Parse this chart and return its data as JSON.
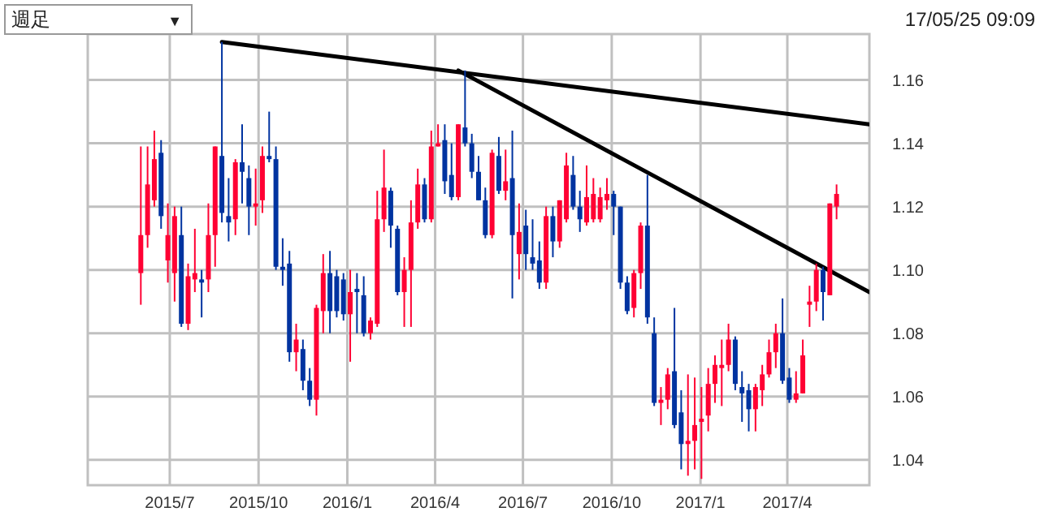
{
  "chart_data": {
    "type": "candlestick",
    "annotations": [
      "週足",
      "17/05/25 09:09",
      "▼"
    ],
    "x": [
      "2015-06-01",
      "2015-06-08",
      "2015-06-15",
      "2015-06-22",
      "2015-06-29",
      "2015-07-06",
      "2015-07-13",
      "2015-07-20",
      "2015-07-27",
      "2015-08-03",
      "2015-08-10",
      "2015-08-17",
      "2015-08-24",
      "2015-08-31",
      "2015-09-07",
      "2015-09-14",
      "2015-09-21",
      "2015-09-28",
      "2015-10-05",
      "2015-10-12",
      "2015-10-19",
      "2015-10-26",
      "2015-11-02",
      "2015-11-09",
      "2015-11-16",
      "2015-11-23",
      "2015-11-30",
      "2015-12-07",
      "2015-12-14",
      "2015-12-21",
      "2015-12-28",
      "2016-01-04",
      "2016-01-11",
      "2016-01-18",
      "2016-01-25",
      "2016-02-01",
      "2016-02-08",
      "2016-02-15",
      "2016-02-22",
      "2016-02-29",
      "2016-03-07",
      "2016-03-14",
      "2016-03-21",
      "2016-03-28",
      "2016-04-04",
      "2016-04-11",
      "2016-04-18",
      "2016-04-25",
      "2016-05-02",
      "2016-05-09",
      "2016-05-16",
      "2016-05-23",
      "2016-05-30",
      "2016-06-06",
      "2016-06-13",
      "2016-06-20",
      "2016-06-27",
      "2016-07-04",
      "2016-07-11",
      "2016-07-18",
      "2016-07-25",
      "2016-08-01",
      "2016-08-08",
      "2016-08-15",
      "2016-08-22",
      "2016-08-29",
      "2016-09-05",
      "2016-09-12",
      "2016-09-19",
      "2016-09-26",
      "2016-10-03",
      "2016-10-10",
      "2016-10-17",
      "2016-10-24",
      "2016-10-31",
      "2016-11-07",
      "2016-11-14",
      "2016-11-21",
      "2016-11-28",
      "2016-12-05",
      "2016-12-12",
      "2016-12-19",
      "2016-12-26",
      "2017-01-02",
      "2017-01-09",
      "2017-01-16",
      "2017-01-23",
      "2017-01-30",
      "2017-02-06",
      "2017-02-13",
      "2017-02-20",
      "2017-02-27",
      "2017-03-06",
      "2017-03-13",
      "2017-03-20",
      "2017-03-27",
      "2017-04-03",
      "2017-04-10",
      "2017-04-17",
      "2017-04-24",
      "2017-05-01",
      "2017-05-08",
      "2017-05-15",
      "2017-05-22"
    ],
    "ohlc": [
      [
        1.099,
        1.139,
        1.089,
        1.111
      ],
      [
        1.111,
        1.139,
        1.107,
        1.127
      ],
      [
        1.122,
        1.144,
        1.12,
        1.135
      ],
      [
        1.137,
        1.141,
        1.113,
        1.117
      ],
      [
        1.103,
        1.121,
        1.096,
        1.111
      ],
      [
        1.099,
        1.12,
        1.09,
        1.117
      ],
      [
        1.111,
        1.12,
        1.082,
        1.083
      ],
      [
        1.083,
        1.102,
        1.081,
        1.098
      ],
      [
        1.097,
        1.113,
        1.093,
        1.099
      ],
      [
        1.097,
        1.1,
        1.085,
        1.096
      ],
      [
        1.097,
        1.121,
        1.093,
        1.111
      ],
      [
        1.111,
        1.139,
        1.101,
        1.139
      ],
      [
        1.136,
        1.172,
        1.115,
        1.118
      ],
      [
        1.117,
        1.129,
        1.109,
        1.115
      ],
      [
        1.116,
        1.135,
        1.111,
        1.134
      ],
      [
        1.134,
        1.146,
        1.121,
        1.131
      ],
      [
        1.129,
        1.133,
        1.111,
        1.12
      ],
      [
        1.12,
        1.132,
        1.114,
        1.121
      ],
      [
        1.122,
        1.139,
        1.118,
        1.136
      ],
      [
        1.136,
        1.15,
        1.134,
        1.135
      ],
      [
        1.135,
        1.139,
        1.1,
        1.101
      ],
      [
        1.101,
        1.11,
        1.095,
        1.1
      ],
      [
        1.102,
        1.106,
        1.071,
        1.074
      ],
      [
        1.074,
        1.083,
        1.068,
        1.078
      ],
      [
        1.075,
        1.078,
        1.062,
        1.065
      ],
      [
        1.065,
        1.069,
        1.057,
        1.059
      ],
      [
        1.059,
        1.089,
        1.054,
        1.088
      ],
      [
        1.087,
        1.105,
        1.08,
        1.099
      ],
      [
        1.099,
        1.106,
        1.08,
        1.087
      ],
      [
        1.098,
        1.1,
        1.085,
        1.087
      ],
      [
        1.097,
        1.099,
        1.084,
        1.086
      ],
      [
        1.086,
        1.1,
        1.071,
        1.093
      ],
      [
        1.094,
        1.099,
        1.08,
        1.093
      ],
      [
        1.092,
        1.098,
        1.079,
        1.08
      ],
      [
        1.08,
        1.085,
        1.078,
        1.084
      ],
      [
        1.083,
        1.125,
        1.082,
        1.116
      ],
      [
        1.116,
        1.138,
        1.112,
        1.126
      ],
      [
        1.125,
        1.126,
        1.107,
        1.114
      ],
      [
        1.113,
        1.114,
        1.092,
        1.093
      ],
      [
        1.093,
        1.104,
        1.082,
        1.1
      ],
      [
        1.1,
        1.122,
        1.082,
        1.115
      ],
      [
        1.115,
        1.132,
        1.113,
        1.127
      ],
      [
        1.127,
        1.129,
        1.115,
        1.116
      ],
      [
        1.116,
        1.144,
        1.115,
        1.139
      ],
      [
        1.139,
        1.146,
        1.139,
        1.14
      ],
      [
        1.141,
        1.146,
        1.124,
        1.128
      ],
      [
        1.13,
        1.14,
        1.122,
        1.123
      ],
      [
        1.123,
        1.146,
        1.122,
        1.146
      ],
      [
        1.145,
        1.163,
        1.139,
        1.14
      ],
      [
        1.14,
        1.143,
        1.129,
        1.131
      ],
      [
        1.131,
        1.136,
        1.122,
        1.122
      ],
      [
        1.122,
        1.126,
        1.11,
        1.111
      ],
      [
        1.111,
        1.138,
        1.11,
        1.137
      ],
      [
        1.136,
        1.142,
        1.124,
        1.125
      ],
      [
        1.125,
        1.138,
        1.122,
        1.128
      ],
      [
        1.129,
        1.144,
        1.091,
        1.111
      ],
      [
        1.105,
        1.121,
        1.097,
        1.112
      ],
      [
        1.114,
        1.119,
        1.1,
        1.105
      ],
      [
        1.104,
        1.116,
        1.1,
        1.102
      ],
      [
        1.103,
        1.109,
        1.094,
        1.096
      ],
      [
        1.096,
        1.12,
        1.094,
        1.117
      ],
      [
        1.117,
        1.12,
        1.104,
        1.109
      ],
      [
        1.109,
        1.122,
        1.107,
        1.122
      ],
      [
        1.116,
        1.137,
        1.115,
        1.133
      ],
      [
        1.13,
        1.136,
        1.119,
        1.12
      ],
      [
        1.12,
        1.125,
        1.112,
        1.116
      ],
      [
        1.115,
        1.133,
        1.114,
        1.123
      ],
      [
        1.116,
        1.129,
        1.115,
        1.124
      ],
      [
        1.116,
        1.126,
        1.115,
        1.123
      ],
      [
        1.122,
        1.129,
        1.119,
        1.124
      ],
      [
        1.124,
        1.125,
        1.111,
        1.12
      ],
      [
        1.12,
        1.12,
        1.094,
        1.096
      ],
      [
        1.096,
        1.098,
        1.086,
        1.087
      ],
      [
        1.088,
        1.1,
        1.085,
        1.099
      ],
      [
        1.099,
        1.115,
        1.094,
        1.114
      ],
      [
        1.114,
        1.13,
        1.083,
        1.085
      ],
      [
        1.08,
        1.085,
        1.057,
        1.058
      ],
      [
        1.058,
        1.063,
        1.051,
        1.059
      ],
      [
        1.059,
        1.069,
        1.056,
        1.067
      ],
      [
        1.068,
        1.088,
        1.05,
        1.051
      ],
      [
        1.055,
        1.062,
        1.037,
        1.045
      ],
      [
        1.045,
        1.067,
        1.035,
        1.046
      ],
      [
        1.046,
        1.066,
        1.037,
        1.051
      ],
      [
        1.052,
        1.063,
        1.034,
        1.053
      ],
      [
        1.054,
        1.069,
        1.049,
        1.064
      ],
      [
        1.064,
        1.073,
        1.058,
        1.07
      ],
      [
        1.069,
        1.078,
        1.057,
        1.07
      ],
      [
        1.07,
        1.083,
        1.068,
        1.078
      ],
      [
        1.078,
        1.079,
        1.062,
        1.064
      ],
      [
        1.063,
        1.068,
        1.052,
        1.061
      ],
      [
        1.062,
        1.064,
        1.049,
        1.056
      ],
      [
        1.056,
        1.064,
        1.049,
        1.063
      ],
      [
        1.062,
        1.07,
        1.057,
        1.067
      ],
      [
        1.067,
        1.078,
        1.066,
        1.074
      ],
      [
        1.074,
        1.083,
        1.069,
        1.08
      ],
      [
        1.08,
        1.091,
        1.064,
        1.065
      ],
      [
        1.066,
        1.069,
        1.058,
        1.059
      ],
      [
        1.059,
        1.068,
        1.058,
        1.061
      ],
      [
        1.061,
        1.078,
        1.061,
        1.073
      ],
      [
        1.089,
        1.095,
        1.082,
        1.09
      ],
      [
        1.09,
        1.102,
        1.087,
        1.1
      ],
      [
        1.1,
        1.101,
        1.084,
        1.093
      ],
      [
        1.092,
        1.121,
        1.092,
        1.121
      ],
      [
        1.12,
        1.127,
        1.116,
        1.124
      ]
    ],
    "colors": [
      "#ff0033",
      "#ff0033",
      "#ff0033",
      "#0033a0",
      "#ff0033",
      "#ff0033",
      "#0033a0",
      "#ff0033",
      "#ff0033",
      "#0033a0",
      "#ff0033",
      "#ff0033",
      "#0033a0",
      "#0033a0",
      "#ff0033",
      "#0033a0",
      "#0033a0",
      "#ff0033",
      "#ff0033",
      "#0033a0",
      "#0033a0",
      "#0033a0",
      "#0033a0",
      "#ff0033",
      "#0033a0",
      "#0033a0",
      "#ff0033",
      "#ff0033",
      "#0033a0",
      "#0033a0",
      "#0033a0",
      "#ff0033",
      "#0033a0",
      "#0033a0",
      "#ff0033",
      "#ff0033",
      "#ff0033",
      "#0033a0",
      "#0033a0",
      "#ff0033",
      "#ff0033",
      "#ff0033",
      "#0033a0",
      "#ff0033",
      "#ff0033",
      "#0033a0",
      "#0033a0",
      "#ff0033",
      "#0033a0",
      "#0033a0",
      "#0033a0",
      "#0033a0",
      "#ff0033",
      "#0033a0",
      "#ff0033",
      "#0033a0",
      "#ff0033",
      "#0033a0",
      "#0033a0",
      "#0033a0",
      "#ff0033",
      "#0033a0",
      "#ff0033",
      "#ff0033",
      "#0033a0",
      "#0033a0",
      "#ff0033",
      "#ff0033",
      "#ff0033",
      "#ff0033",
      "#0033a0",
      "#0033a0",
      "#0033a0",
      "#ff0033",
      "#ff0033",
      "#0033a0",
      "#0033a0",
      "#ff0033",
      "#ff0033",
      "#0033a0",
      "#0033a0",
      "#ff0033",
      "#ff0033",
      "#ff0033",
      "#ff0033",
      "#ff0033",
      "#ff0033",
      "#ff0033",
      "#0033a0",
      "#0033a0",
      "#0033a0",
      "#ff0033",
      "#ff0033",
      "#ff0033",
      "#ff0033",
      "#0033a0",
      "#0033a0",
      "#ff0033",
      "#ff0033",
      "#ff0033",
      "#ff0033",
      "#0033a0",
      "#ff0033",
      "#ff0033"
    ],
    "series": [
      {
        "type": "line",
        "color": "#000000",
        "x": [
          "2015-08-24",
          "2017-06-25"
        ],
        "values": [
          1.172,
          1.146
        ]
      },
      {
        "type": "line",
        "color": "#000000",
        "x": [
          "2016-04-25",
          "2017-06-25"
        ],
        "values": [
          1.163,
          1.093
        ]
      }
    ],
    "xlim": [
      "2015-04-07",
      "2017-06-25"
    ],
    "xticks": [
      {
        "value": "2015-07-01",
        "label": "2015/7"
      },
      {
        "value": "2015-10-01",
        "label": "2015/10"
      },
      {
        "value": "2016-01-01",
        "label": "2016/1"
      },
      {
        "value": "2016-04-01",
        "label": "2016/4"
      },
      {
        "value": "2016-07-01",
        "label": "2016/7"
      },
      {
        "value": "2016-10-01",
        "label": "2016/10"
      },
      {
        "value": "2017-01-01",
        "label": "2017/1"
      },
      {
        "value": "2017-04-01",
        "label": "2017/4"
      }
    ],
    "ylim": [
      1.032,
      1.1745
    ],
    "yticks": [
      {
        "value": 1.04,
        "label": "1.04"
      },
      {
        "value": 1.06,
        "label": "1.06"
      },
      {
        "value": 1.08,
        "label": "1.08"
      },
      {
        "value": 1.1,
        "label": "1.10"
      },
      {
        "value": 1.12,
        "label": "1.12"
      },
      {
        "value": 1.14,
        "label": "1.14"
      },
      {
        "value": 1.16,
        "label": "1.16"
      }
    ],
    "grid": true
  }
}
